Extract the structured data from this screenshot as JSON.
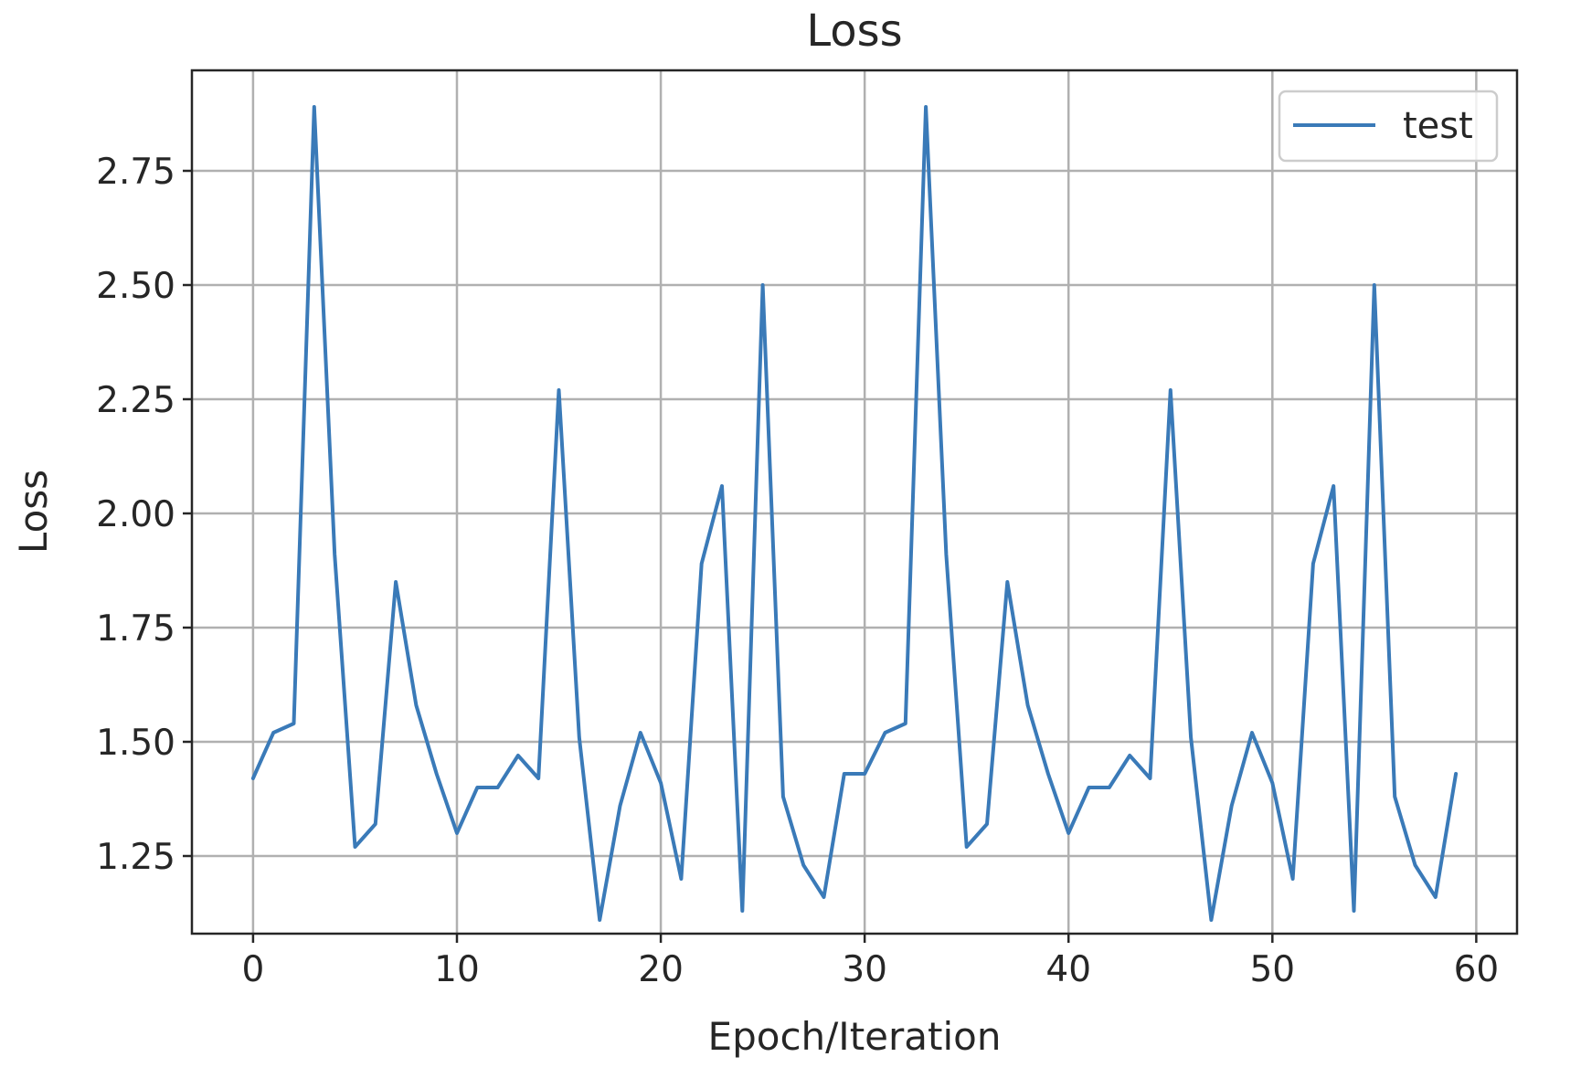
{
  "chart_data": {
    "type": "line",
    "title": "Loss",
    "xlabel": "Epoch/Iteration",
    "ylabel": "Loss",
    "xlim": [
      -3,
      62
    ],
    "ylim": [
      1.08,
      2.97
    ],
    "xticks": [
      0,
      10,
      20,
      30,
      40,
      50,
      60
    ],
    "xtick_labels": [
      "0",
      "10",
      "20",
      "30",
      "40",
      "50",
      "60"
    ],
    "yticks": [
      1.25,
      1.5,
      1.75,
      2.0,
      2.25,
      2.5,
      2.75
    ],
    "ytick_labels": [
      "1.25",
      "1.50",
      "1.75",
      "2.00",
      "2.25",
      "2.50",
      "2.75"
    ],
    "grid": true,
    "legend_position": "top-right",
    "series": [
      {
        "name": "test",
        "color": "#3a7ab8",
        "x": [
          0,
          1,
          2,
          3,
          4,
          5,
          6,
          7,
          8,
          9,
          10,
          11,
          12,
          13,
          14,
          15,
          16,
          17,
          18,
          19,
          20,
          21,
          22,
          23,
          24,
          25,
          26,
          27,
          28,
          29,
          30,
          31,
          32,
          33,
          34,
          35,
          36,
          37,
          38,
          39,
          40,
          41,
          42,
          43,
          44,
          45,
          46,
          47,
          48,
          49,
          50,
          51,
          52,
          53,
          54,
          55,
          56,
          57,
          58,
          59
        ],
        "y": [
          1.42,
          1.52,
          1.54,
          2.89,
          1.91,
          1.27,
          1.32,
          1.85,
          1.58,
          1.43,
          1.3,
          1.4,
          1.4,
          1.47,
          1.42,
          2.27,
          1.51,
          1.11,
          1.36,
          1.52,
          1.41,
          1.2,
          1.89,
          2.06,
          1.13,
          2.5,
          1.38,
          1.23,
          1.16,
          1.43,
          1.43,
          1.52,
          1.54,
          2.89,
          1.91,
          1.27,
          1.32,
          1.85,
          1.58,
          1.43,
          1.3,
          1.4,
          1.4,
          1.47,
          1.42,
          2.27,
          1.51,
          1.11,
          1.36,
          1.52,
          1.41,
          1.2,
          1.89,
          2.06,
          1.13,
          2.5,
          1.38,
          1.23,
          1.16,
          1.43
        ]
      }
    ]
  }
}
